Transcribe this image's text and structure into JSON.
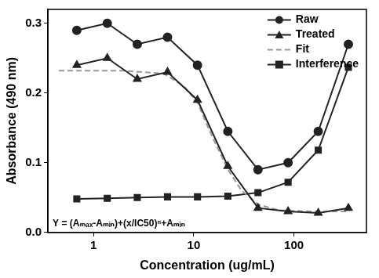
{
  "chart_data": {
    "type": "line",
    "x_label": "Concentration (ug/mL)",
    "y_label": "Absorbance (490 nm)",
    "annotation": "Y = (Aₘₐₓ-Aₘᵢₙ)+(x/IC50)ⁿ+Aₘᵢₙ",
    "log": "x",
    "grid": false,
    "legend": "upper right",
    "xlim": [
      0.35,
      530
    ],
    "xticks": [
      1,
      10,
      100
    ],
    "ylim": [
      0,
      0.32
    ],
    "yticks": [
      {
        "value": 0,
        "label": "0.0"
      },
      0.1,
      0.2,
      0.3
    ],
    "series": [
      {
        "name": "Raw",
        "color": "#222222",
        "marker": "circle",
        "line_style": "solid",
        "x": [
          0.68,
          1.37,
          2.73,
          5.47,
          10.9,
          21.9,
          43.8,
          87.5,
          175,
          350
        ],
        "values": [
          0.29,
          0.3,
          0.27,
          0.28,
          0.24,
          0.145,
          0.09,
          0.1,
          0.145,
          0.27
        ]
      },
      {
        "name": "Treated",
        "color": "#222222",
        "marker": "triangle",
        "line_style": "solid",
        "x": [
          0.68,
          1.37,
          2.73,
          5.47,
          10.9,
          21.9,
          43.8,
          87.5,
          175,
          350
        ],
        "values": [
          0.24,
          0.25,
          0.22,
          0.23,
          0.19,
          0.095,
          0.035,
          0.03,
          0.028,
          0.035
        ]
      },
      {
        "name": "Fit",
        "color": "#999999",
        "marker": "none",
        "line_style": "dashed",
        "x": [
          0.45,
          1,
          2,
          5,
          8,
          11,
          15,
          22,
          30,
          44,
          70,
          150,
          350
        ],
        "values": [
          0.232,
          0.232,
          0.232,
          0.228,
          0.21,
          0.185,
          0.14,
          0.09,
          0.06,
          0.04,
          0.032,
          0.03,
          0.03
        ]
      },
      {
        "name": "Interference",
        "color": "#222222",
        "marker": "square",
        "line_style": "solid",
        "x": [
          0.68,
          1.37,
          2.73,
          5.47,
          10.9,
          21.9,
          43.8,
          87.5,
          175,
          350
        ],
        "values": [
          0.048,
          0.049,
          0.05,
          0.051,
          0.051,
          0.052,
          0.057,
          0.072,
          0.118,
          0.237
        ]
      }
    ]
  }
}
